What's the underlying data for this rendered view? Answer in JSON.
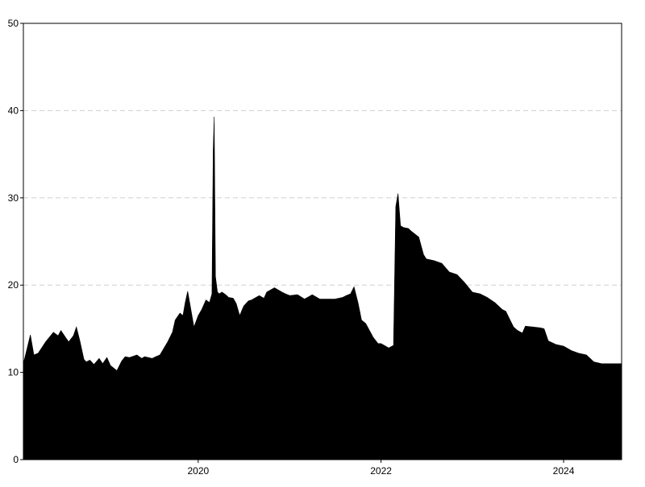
{
  "chart_data": {
    "type": "area",
    "title": "",
    "xlabel": "",
    "ylabel": "",
    "xlim": [
      "2018-02-01",
      "2024-08-20"
    ],
    "ylim": [
      0,
      50
    ],
    "grid": {
      "horizontal": true,
      "vertical": false,
      "style": "dashed"
    },
    "legend": "none",
    "x_ticks": [
      {
        "value": "2020-01-01",
        "label": "2020"
      },
      {
        "value": "2022-01-01",
        "label": "2022"
      },
      {
        "value": "2024-01-01",
        "label": "2024"
      }
    ],
    "y_ticks": [
      0,
      10,
      20,
      30,
      40,
      50
    ],
    "fill_color": "#000000",
    "series": [
      {
        "x": [
          "2018-02-01",
          "2018-03-01",
          "2018-03-15",
          "2018-04-01",
          "2018-05-01",
          "2018-06-01",
          "2018-06-20",
          "2018-07-01",
          "2018-07-20",
          "2018-08-01",
          "2018-08-20",
          "2018-09-01",
          "2018-09-15",
          "2018-10-01",
          "2018-10-10",
          "2018-10-25",
          "2018-11-10",
          "2018-12-01",
          "2018-12-15",
          "2019-01-01",
          "2019-01-15",
          "2019-02-01",
          "2019-02-10",
          "2019-03-01",
          "2019-03-15",
          "2019-04-01",
          "2019-05-01",
          "2019-05-20",
          "2019-06-01",
          "2019-07-01",
          "2019-07-15",
          "2019-08-01",
          "2019-09-01",
          "2019-09-20",
          "2019-10-01",
          "2019-10-20",
          "2019-11-01",
          "2019-11-10",
          "2019-11-20",
          "2019-12-01",
          "2019-12-15",
          "2020-01-01",
          "2020-01-15",
          "2020-02-01",
          "2020-02-15",
          "2020-02-25",
          "2020-03-01",
          "2020-03-05",
          "2020-03-10",
          "2020-03-18",
          "2020-03-25",
          "2020-04-05",
          "2020-04-20",
          "2020-05-01",
          "2020-05-20",
          "2020-06-01",
          "2020-06-15",
          "2020-06-25",
          "2020-07-01",
          "2020-07-20",
          "2020-08-01",
          "2020-09-01",
          "2020-09-20",
          "2020-10-01",
          "2020-11-01",
          "2020-12-01",
          "2020-12-15",
          "2021-01-01",
          "2021-02-01",
          "2021-03-01",
          "2021-04-01",
          "2021-05-01",
          "2021-06-01",
          "2021-07-01",
          "2021-08-01",
          "2021-08-15",
          "2021-09-01",
          "2021-09-15",
          "2021-10-01",
          "2021-10-15",
          "2021-11-01",
          "2021-12-01",
          "2021-12-20",
          "2022-01-01",
          "2022-02-01",
          "2022-02-20",
          "2022-03-01",
          "2022-03-10",
          "2022-03-20",
          "2022-04-01",
          "2022-04-20",
          "2022-05-01",
          "2022-06-01",
          "2022-06-20",
          "2022-07-01",
          "2022-08-01",
          "2022-09-01",
          "2022-10-01",
          "2022-11-01",
          "2022-12-01",
          "2023-01-01",
          "2023-02-01",
          "2023-03-01",
          "2023-04-01",
          "2023-05-01",
          "2023-05-15",
          "2023-06-01",
          "2023-06-15",
          "2023-07-01",
          "2023-07-20",
          "2023-08-01",
          "2023-09-01",
          "2023-10-01",
          "2023-10-15",
          "2023-11-01",
          "2023-12-01",
          "2024-01-01",
          "2024-02-01",
          "2024-03-01",
          "2024-04-01",
          "2024-05-01",
          "2024-06-01",
          "2024-06-20",
          "2024-07-01",
          "2024-08-01",
          "2024-08-20"
        ],
        "values": [
          11.0,
          14.3,
          12.0,
          12.2,
          13.5,
          14.6,
          14.2,
          14.8,
          14.0,
          13.5,
          14.2,
          15.2,
          13.6,
          11.5,
          11.2,
          11.4,
          10.9,
          11.6,
          11.0,
          11.7,
          10.8,
          10.4,
          10.2,
          11.3,
          11.8,
          11.7,
          12.0,
          11.6,
          11.8,
          11.6,
          11.8,
          12.0,
          13.5,
          14.6,
          16.0,
          16.8,
          16.5,
          18.0,
          19.3,
          17.5,
          15.2,
          16.5,
          17.2,
          18.3,
          18.0,
          19.0,
          35.5,
          39.3,
          21.0,
          19.2,
          19.0,
          19.2,
          18.9,
          18.6,
          18.5,
          17.9,
          16.5,
          17.2,
          17.6,
          18.2,
          18.3,
          18.8,
          18.5,
          19.2,
          19.7,
          19.2,
          19.0,
          18.8,
          18.9,
          18.4,
          18.9,
          18.4,
          18.4,
          18.4,
          18.6,
          18.8,
          19.0,
          19.8,
          18.0,
          16.0,
          15.6,
          14.0,
          13.3,
          13.3,
          12.8,
          13.1,
          29.0,
          30.5,
          26.8,
          26.6,
          26.5,
          26.2,
          25.5,
          23.5,
          23.0,
          22.8,
          22.5,
          21.5,
          21.2,
          20.3,
          19.2,
          19.0,
          18.6,
          18.0,
          17.2,
          17.0,
          16.0,
          15.2,
          14.8,
          14.5,
          15.3,
          15.2,
          15.1,
          15.0,
          13.6,
          13.2,
          13.0,
          12.5,
          12.2,
          12.0,
          11.2,
          11.0,
          11.0,
          11.0,
          11.0,
          11.0
        ]
      }
    ]
  }
}
